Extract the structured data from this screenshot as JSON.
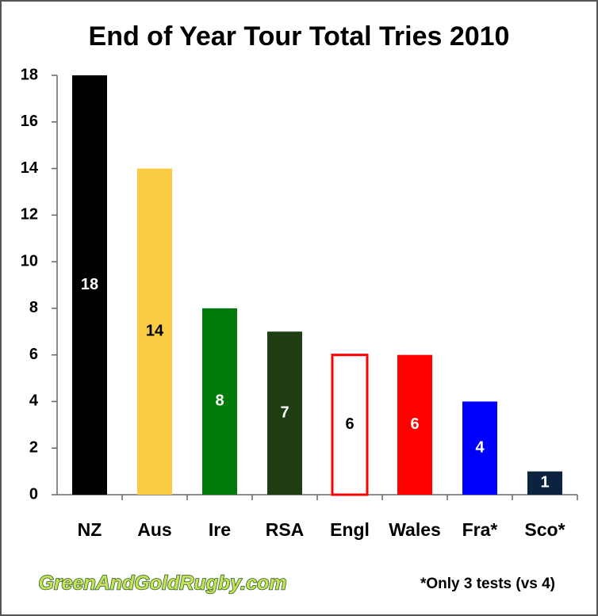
{
  "chart_data": {
    "type": "bar",
    "title": "End of Year Tour Total Tries 2010",
    "categories": [
      "NZ",
      "Aus",
      "Ire",
      "RSA",
      "Engl",
      "Wales",
      "Fra*",
      "Sco*"
    ],
    "values": [
      18,
      14,
      8,
      7,
      6,
      6,
      4,
      1
    ],
    "colors": [
      "#000000",
      "#f9cc44",
      "#007a0a",
      "#1e3d12",
      "#ffffff",
      "#ff0000",
      "#0000ff",
      "#0c2340"
    ],
    "edgecolors": [
      "#000000",
      "#f9cc44",
      "#007a0a",
      "#1e3d12",
      "#ff0000",
      "#ff0000",
      "#0000ff",
      "#0c2340"
    ],
    "label_colors": [
      "#ffffff",
      "#000000",
      "#ffffff",
      "#ffffff",
      "#000000",
      "#ffffff",
      "#ffffff",
      "#ffffff"
    ],
    "ylim": [
      0,
      18
    ],
    "yticks": [
      0,
      2,
      4,
      6,
      8,
      10,
      12,
      14,
      16,
      18
    ],
    "grid": false,
    "annotations": [
      "*Only 3 tests (vs 4)"
    ],
    "watermark": "GreenAndGoldRugby.com"
  }
}
